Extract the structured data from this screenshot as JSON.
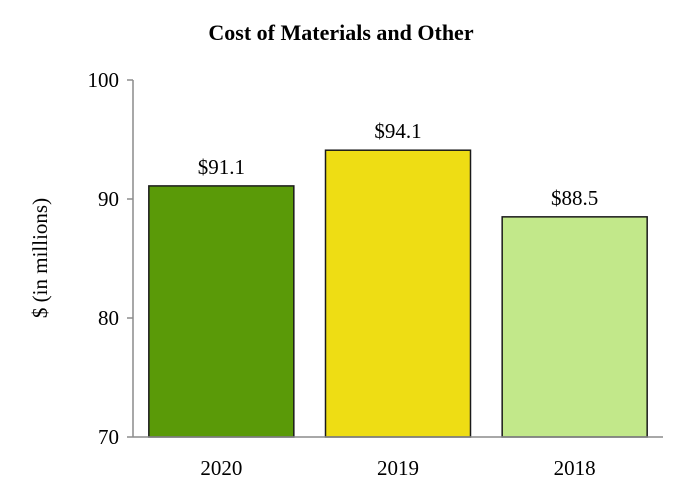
{
  "chart_data": {
    "type": "bar",
    "title": "Cost of Materials and Other",
    "xlabel": "",
    "ylabel": "$ (in millions)",
    "categories": [
      "2020",
      "2019",
      "2018"
    ],
    "values": [
      91.1,
      94.1,
      88.5
    ],
    "data_labels": [
      "$91.1",
      "$94.1",
      "$88.5"
    ],
    "colors": [
      "#5a9a08",
      "#eedd14",
      "#c2e88a"
    ],
    "ylim": [
      70,
      100
    ],
    "yticks": [
      70,
      80,
      90,
      100
    ],
    "ytick_labels": [
      "70",
      "80",
      "90",
      "100"
    ],
    "grid": false,
    "legend": "none"
  }
}
